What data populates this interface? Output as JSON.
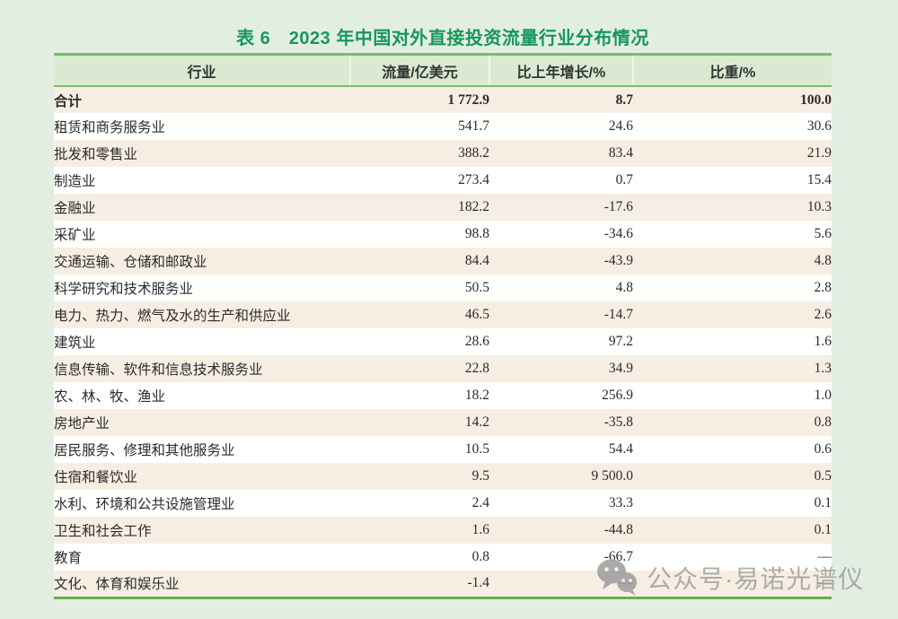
{
  "title": "表 6　2023 年中国对外直接投资流量行业分布情况",
  "table": {
    "columns": [
      "行业",
      "流量/亿美元",
      "比上年增长/%",
      "比重/%"
    ],
    "rows": [
      {
        "industry": "合计",
        "flow": "1 772.9",
        "growth": "8.7",
        "share": "100.0",
        "bold": true
      },
      {
        "industry": "租赁和商务服务业",
        "flow": "541.7",
        "growth": "24.6",
        "share": "30.6",
        "bold": false
      },
      {
        "industry": "批发和零售业",
        "flow": "388.2",
        "growth": "83.4",
        "share": "21.9",
        "bold": false
      },
      {
        "industry": "制造业",
        "flow": "273.4",
        "growth": "0.7",
        "share": "15.4",
        "bold": false
      },
      {
        "industry": "金融业",
        "flow": "182.2",
        "growth": "-17.6",
        "share": "10.3",
        "bold": false
      },
      {
        "industry": "采矿业",
        "flow": "98.8",
        "growth": "-34.6",
        "share": "5.6",
        "bold": false
      },
      {
        "industry": "交通运输、仓储和邮政业",
        "flow": "84.4",
        "growth": "-43.9",
        "share": "4.8",
        "bold": false
      },
      {
        "industry": "科学研究和技术服务业",
        "flow": "50.5",
        "growth": "4.8",
        "share": "2.8",
        "bold": false
      },
      {
        "industry": "电力、热力、燃气及水的生产和供应业",
        "flow": "46.5",
        "growth": "-14.7",
        "share": "2.6",
        "bold": false
      },
      {
        "industry": "建筑业",
        "flow": "28.6",
        "growth": "97.2",
        "share": "1.6",
        "bold": false
      },
      {
        "industry": "信息传输、软件和信息技术服务业",
        "flow": "22.8",
        "growth": "34.9",
        "share": "1.3",
        "bold": false
      },
      {
        "industry": "农、林、牧、渔业",
        "flow": "18.2",
        "growth": "256.9",
        "share": "1.0",
        "bold": false
      },
      {
        "industry": "房地产业",
        "flow": "14.2",
        "growth": "-35.8",
        "share": "0.8",
        "bold": false
      },
      {
        "industry": "居民服务、修理和其他服务业",
        "flow": "10.5",
        "growth": "54.4",
        "share": "0.6",
        "bold": false
      },
      {
        "industry": "住宿和餐饮业",
        "flow": "9.5",
        "growth": "9 500.0",
        "share": "0.5",
        "bold": false
      },
      {
        "industry": "水利、环境和公共设施管理业",
        "flow": "2.4",
        "growth": "33.3",
        "share": "0.1",
        "bold": false
      },
      {
        "industry": "卫生和社会工作",
        "flow": "1.6",
        "growth": "-44.8",
        "share": "0.1",
        "bold": false
      },
      {
        "industry": "教育",
        "flow": "0.8",
        "growth": "-66.7",
        "share": "—",
        "bold": false
      },
      {
        "industry": "文化、体育和娱乐业",
        "flow": "-1.4",
        "growth": "—",
        "share": "—",
        "bold": false
      }
    ]
  },
  "watermark": {
    "icon": "wechat-icon",
    "text": "公众号·易诺光谱仪"
  },
  "colors": {
    "page_background": "#e3eee2",
    "header_background": "#d9e9d2",
    "header_border_green": "#7cbd68",
    "bottom_border_green": "#66b04b",
    "row_beige": "#f7eee3",
    "row_white": "#fffffe",
    "title_green": "#17975a",
    "body_text": "#2b2b2b",
    "watermark_gray": "#a2a2a2"
  }
}
